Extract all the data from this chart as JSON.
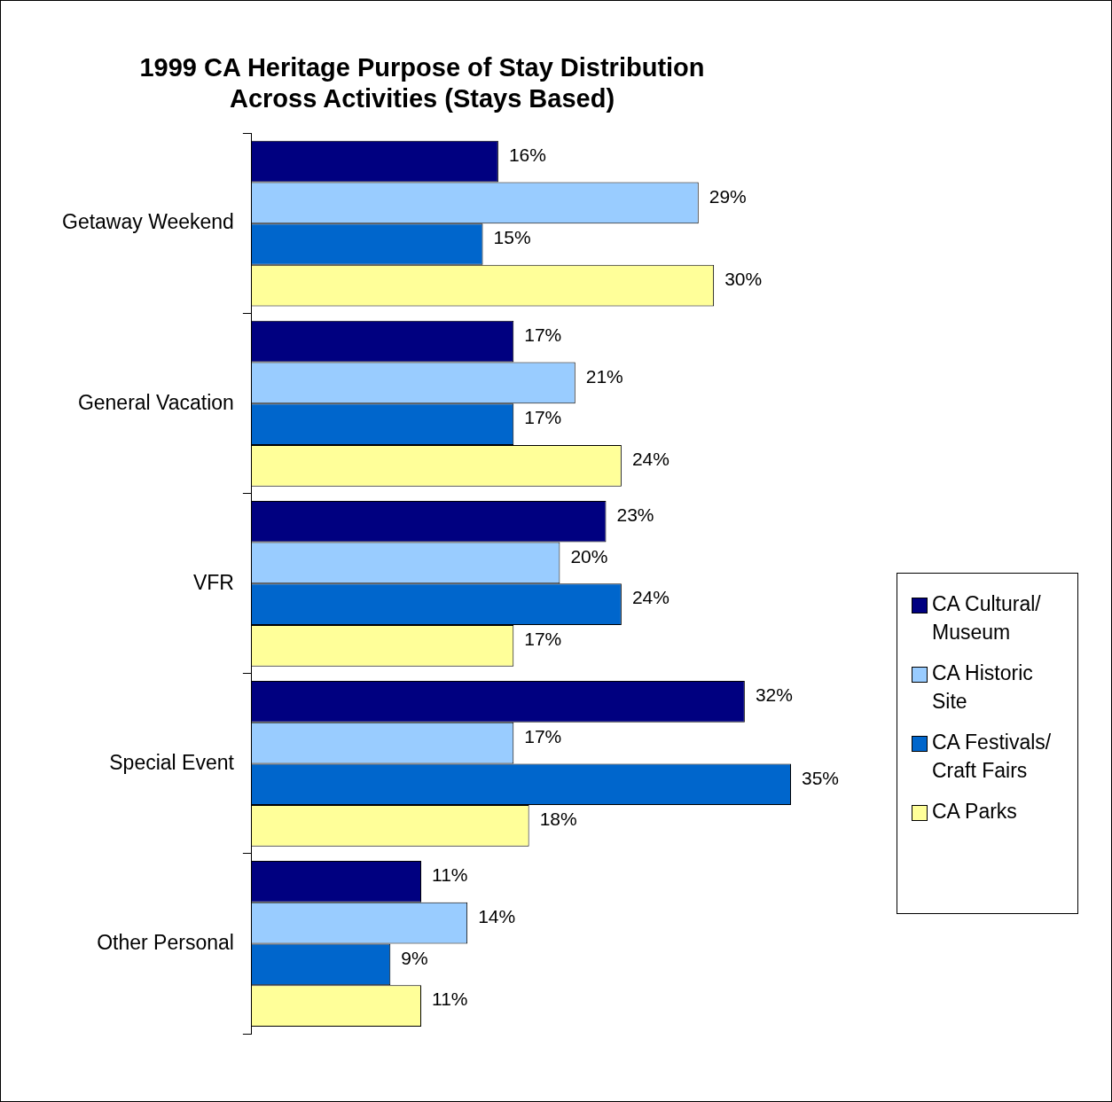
{
  "chart_data": {
    "type": "bar",
    "orientation": "horizontal",
    "title": "1999 CA Heritage Purpose of Stay Distribution\nAcross Activities (Stays Based)",
    "categories": [
      "Getaway Weekend",
      "General Vacation",
      "VFR",
      "Special Event",
      "Other Personal"
    ],
    "series": [
      {
        "name": "CA Cultural/ Museum",
        "color": "#000080",
        "values": [
          16,
          17,
          23,
          32,
          11
        ],
        "value_labels": [
          "16%",
          "17%",
          "23%",
          "32%",
          "11%"
        ]
      },
      {
        "name": "CA Historic Site",
        "color": "#99ccff",
        "values": [
          29,
          21,
          20,
          17,
          14
        ],
        "value_labels": [
          "29%",
          "21%",
          "20%",
          "17%",
          "14%"
        ]
      },
      {
        "name": "CA Festivals/ Craft Fairs",
        "color": "#0066cc",
        "values": [
          15,
          17,
          24,
          35,
          9
        ],
        "value_labels": [
          "15%",
          "17%",
          "24%",
          "35%",
          "9%"
        ]
      },
      {
        "name": "CA Parks",
        "color": "#ffff99",
        "values": [
          30,
          24,
          17,
          18,
          11
        ],
        "value_labels": [
          "30%",
          "24%",
          "17%",
          "18%",
          "11%"
        ]
      }
    ],
    "legend": "right"
  }
}
